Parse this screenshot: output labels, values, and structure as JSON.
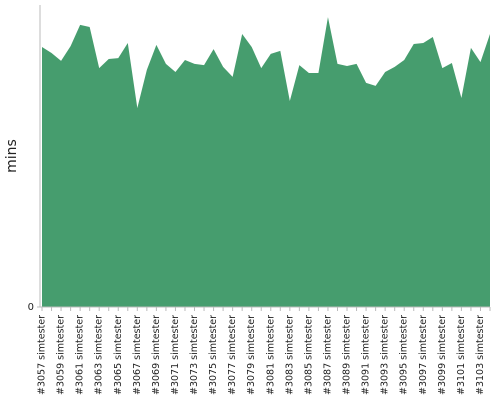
{
  "chart_data": {
    "type": "area",
    "y_label": "mins",
    "categories": [
      "#3057 simtester",
      null,
      "#3059 simtester",
      null,
      "#3061 simtester",
      null,
      "#3063 simtester",
      null,
      "#3065 simtester",
      null,
      "#3067 simtester",
      null,
      "#3069 simtester",
      null,
      "#3071 simtester",
      null,
      "#3073 simtester",
      null,
      "#3075 simtester",
      null,
      "#3077 simtester",
      null,
      "#3079 simtester",
      null,
      "#3081 simtester",
      null,
      "#3083 simtester",
      null,
      "#3085 simtester",
      null,
      "#3087 simtester",
      null,
      "#3089 simtester",
      null,
      "#3091 simtester",
      null,
      "#3093 simtester",
      null,
      "#3095 simtester",
      null,
      "#3097 simtester",
      null,
      "#3099 simtester",
      null,
      "#3101 simtester",
      null,
      "#3103 simtester",
      null
    ],
    "values": [
      86.1,
      84.1,
      81.5,
      86.4,
      93.4,
      92.7,
      79.1,
      82.1,
      82.4,
      87.4,
      65.9,
      78.5,
      86.8,
      80.5,
      77.8,
      81.8,
      80.5,
      80.1,
      85.4,
      79.5,
      76.2,
      90.4,
      86.1,
      79.1,
      83.8,
      84.8,
      68.2,
      80.1,
      77.5,
      77.5,
      96.0,
      80.5,
      79.8,
      80.5,
      74.2,
      73.2,
      77.8,
      79.5,
      81.8,
      87.1,
      87.4,
      89.4,
      79.1,
      80.8,
      69.2,
      85.8,
      81.1,
      90.4
    ],
    "color": "#469d6e",
    "ylim": [
      0,
      100
    ],
    "yticks": [
      0
    ]
  }
}
